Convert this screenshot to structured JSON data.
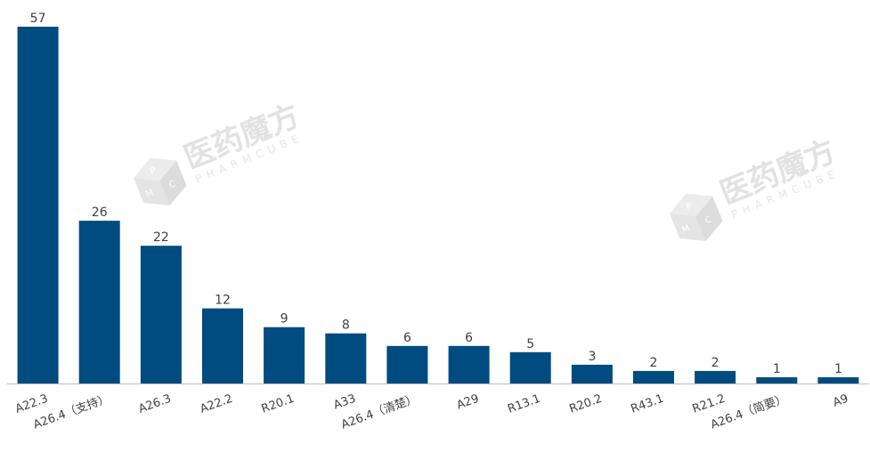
{
  "colors": {
    "bar": "#004b7f",
    "axis": "#bfbfbf",
    "text": "#404040",
    "watermark": "#e2e2e2"
  },
  "watermark": {
    "cn": "医药魔方",
    "en": "PHARMCUBE",
    "logo_letters": [
      "P",
      "M",
      "C"
    ]
  },
  "chart_data": {
    "type": "bar",
    "title": "",
    "xlabel": "",
    "ylabel": "",
    "categories": [
      "A22.3",
      "A26.4（支持）",
      "A26.3",
      "A22.2",
      "R20.1",
      "A33",
      "A26.4（清楚）",
      "A29",
      "R13.1",
      "R20.2",
      "R43.1",
      "R21.2",
      "A26.4（简要）",
      "A9"
    ],
    "values": [
      57,
      26,
      22,
      12,
      9,
      8,
      6,
      6,
      5,
      3,
      2,
      2,
      1,
      1
    ],
    "ylim": [
      0,
      57
    ],
    "grid": false,
    "legend": "none",
    "data_labels": true
  }
}
